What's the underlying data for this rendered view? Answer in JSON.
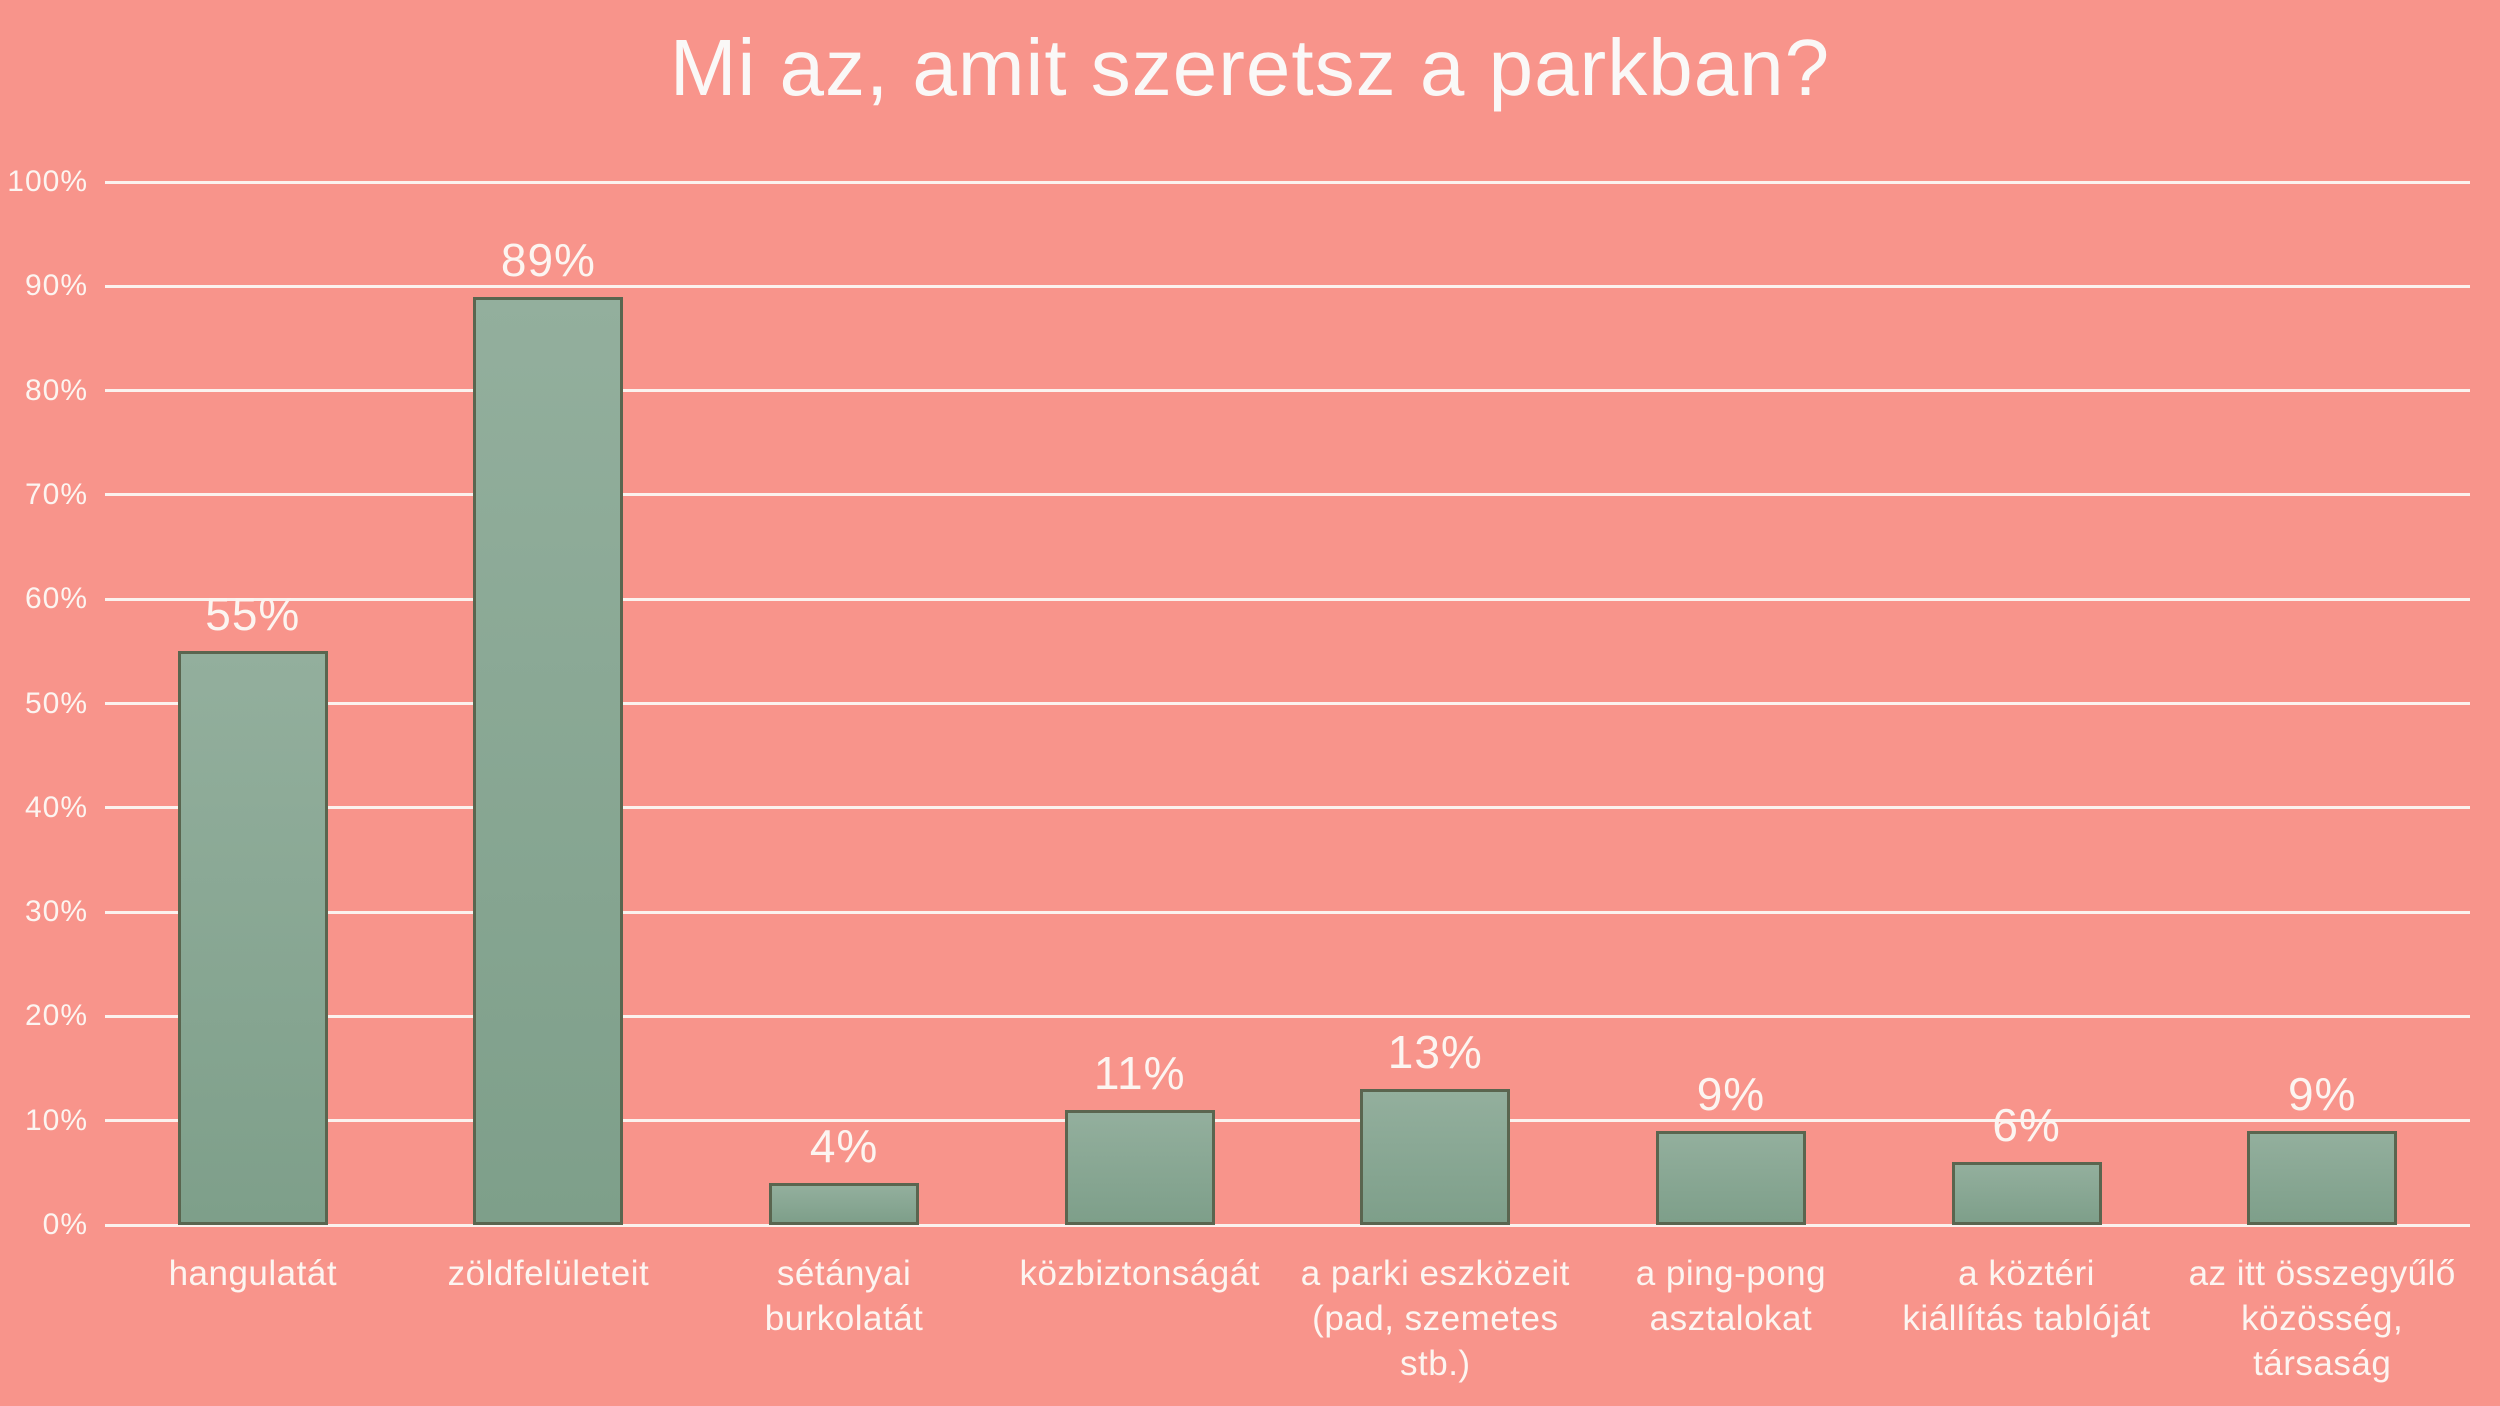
{
  "title": "Mi az, amit szeretsz a parkban?",
  "colors": {
    "background": "#F8948B",
    "bar_gradient_top": "#93AF9D",
    "bar_gradient_bottom": "#7E9F8A",
    "bar_border": "#5A654F",
    "gridline": "#FBF2EE",
    "axis_text": "#FCF5F1",
    "title_text": "#FAF8F7"
  },
  "chart_data": {
    "type": "bar",
    "title": "Mi az, amit szeretsz a parkban?",
    "categories": [
      "hangulatát",
      "zöldfelületeit",
      "sétányai\nburkolatát",
      "közbiztonságát",
      "a parki eszközeit\n(pad, szemetes\nstb.)",
      "a ping-pong\nasztalokat",
      "a köztéri\nkiállítás tablóját",
      "az itt összegyűlő\nközösség,\ntársaság"
    ],
    "values": [
      55,
      89,
      4,
      11,
      13,
      9,
      6,
      9
    ],
    "value_labels": [
      "55%",
      "89%",
      "4%",
      "11%",
      "13%",
      "9%",
      "6%",
      "9%"
    ],
    "xlabel": "",
    "ylabel": "",
    "ylim": [
      0,
      100
    ],
    "yticks": [
      0,
      10,
      20,
      30,
      40,
      50,
      60,
      70,
      80,
      90,
      100
    ],
    "ytick_labels": [
      "0%",
      "10%",
      "20%",
      "30%",
      "40%",
      "50%",
      "60%",
      "70%",
      "80%",
      "90%",
      "100%"
    ],
    "grid": true,
    "legend": false
  }
}
